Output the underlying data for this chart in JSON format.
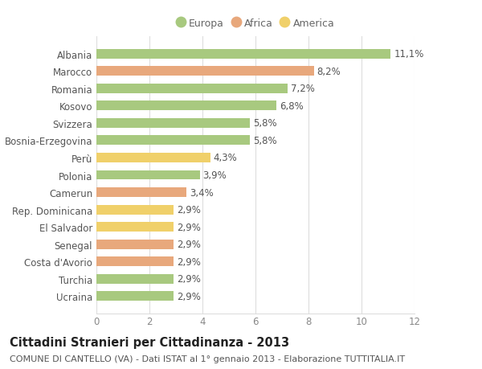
{
  "categories": [
    "Albania",
    "Marocco",
    "Romania",
    "Kosovo",
    "Svizzera",
    "Bosnia-Erzegovina",
    "Perù",
    "Polonia",
    "Camerun",
    "Rep. Dominicana",
    "El Salvador",
    "Senegal",
    "Costa d'Avorio",
    "Turchia",
    "Ucraina"
  ],
  "values": [
    11.1,
    8.2,
    7.2,
    6.8,
    5.8,
    5.8,
    4.3,
    3.9,
    3.4,
    2.9,
    2.9,
    2.9,
    2.9,
    2.9,
    2.9
  ],
  "continents": [
    "Europa",
    "Africa",
    "Europa",
    "Europa",
    "Europa",
    "Europa",
    "America",
    "Europa",
    "Africa",
    "America",
    "America",
    "Africa",
    "Africa",
    "Europa",
    "Europa"
  ],
  "colors": {
    "Europa": "#a8c97f",
    "Africa": "#e8a87c",
    "America": "#f0d06a"
  },
  "xlim": [
    0,
    12
  ],
  "xticks": [
    0,
    2,
    4,
    6,
    8,
    10,
    12
  ],
  "title": "Cittadini Stranieri per Cittadinanza - 2013",
  "subtitle": "COMUNE DI CANTELLO (VA) - Dati ISTAT al 1° gennaio 2013 - Elaborazione TUTTITALIA.IT",
  "background_color": "#ffffff",
  "grid_color": "#dddddd",
  "bar_height": 0.55,
  "title_fontsize": 10.5,
  "subtitle_fontsize": 8,
  "label_fontsize": 8.5,
  "tick_fontsize": 8.5,
  "value_fontsize": 8.5
}
